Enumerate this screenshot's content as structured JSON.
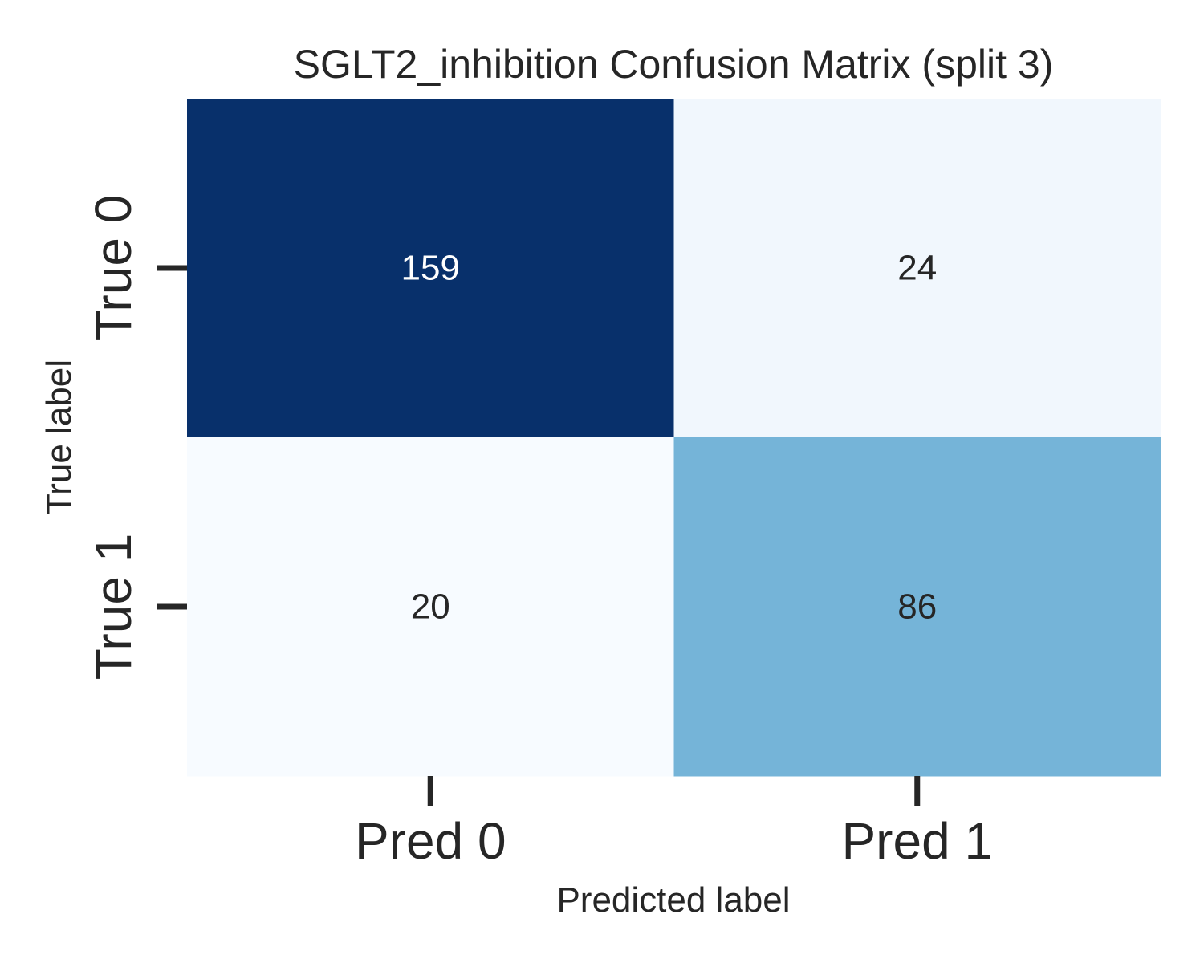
{
  "chart_data": {
    "type": "heatmap",
    "title": "SGLT2_inhibition Confusion Matrix (split 3)",
    "xlabel": "Predicted label",
    "ylabel": "True label",
    "x_categories": [
      "Pred 0",
      "Pred 1"
    ],
    "y_categories": [
      "True 0",
      "True 1"
    ],
    "values": [
      [
        159,
        24
      ],
      [
        20,
        86
      ]
    ],
    "colormap": "Blues",
    "color_low": "#f7fbff",
    "color_high": "#08306b",
    "text_dark": "#262626",
    "text_light": "#ffffff",
    "grid": false,
    "colorbar": false
  }
}
